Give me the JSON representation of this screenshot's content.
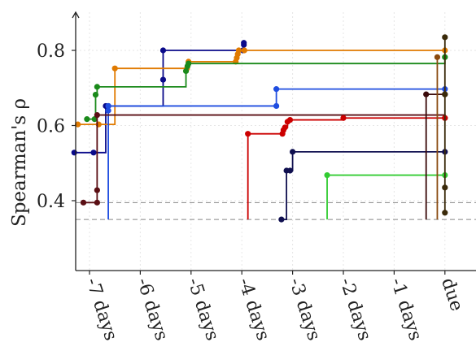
{
  "chart_data": {
    "type": "line",
    "step": true,
    "title": "",
    "xlabel": "",
    "ylabel": "Spearman's ρ",
    "x_ticks": [
      -7,
      -6,
      -5,
      -4,
      -3,
      -2,
      -1,
      0
    ],
    "x_tick_labels": [
      "-7 days",
      "-6 days",
      "-5 days",
      "-4 days",
      "-3 days",
      "-2 days",
      "-1 days",
      "due"
    ],
    "y_ticks": [
      0.4,
      0.6,
      0.8
    ],
    "y_tick_labels": [
      "0.4",
      "0.6",
      "0.8"
    ],
    "xlim": [
      -7.4,
      0.6
    ],
    "ylim": [
      0.22,
      0.91
    ],
    "grid": true,
    "reference_lines": [
      0.35,
      0.395
    ],
    "series": [
      {
        "color": "#0a0a8a",
        "x": [
          -7.3,
          -6.92,
          -6.68,
          -6.63,
          -5.55,
          -5.55,
          -3.98,
          -3.96,
          -3.96
        ],
        "y": [
          0.528,
          0.528,
          0.652,
          0.652,
          0.722,
          0.8,
          0.8,
          0.815,
          0.82
        ]
      },
      {
        "color": "#e07a00",
        "x": [
          -7.23,
          -6.82,
          -6.5,
          -5.08,
          -5.05,
          -4.12,
          -4.1,
          -4.08,
          -4.06,
          -3.95,
          0.0
        ],
        "y": [
          0.603,
          0.603,
          0.752,
          0.752,
          0.77,
          0.77,
          0.78,
          0.79,
          0.8,
          0.8,
          0.8
        ]
      },
      {
        "color": "#1a8a1a",
        "x": [
          -7.05,
          -6.9,
          -6.88,
          -6.85,
          -5.1,
          -5.07,
          -5.05,
          0.0
        ],
        "y": [
          0.617,
          0.617,
          0.682,
          0.703,
          0.745,
          0.758,
          0.765,
          0.782
        ]
      },
      {
        "color": "#1f4de0",
        "x": [
          -6.63,
          -6.63,
          -6.63,
          -3.32,
          -3.32,
          0.0
        ],
        "y": [
          0.35,
          0.64,
          0.652,
          0.652,
          0.697,
          0.697
        ]
      },
      {
        "color": "#5a0f14",
        "x": [
          -7.12,
          -6.85,
          -6.85,
          -6.85,
          0.0
        ],
        "y": [
          0.395,
          0.395,
          0.428,
          0.628,
          0.62
        ]
      },
      {
        "color": "#cc0000",
        "x": [
          -3.88,
          -3.88,
          -3.2,
          -3.18,
          -3.15,
          -3.1,
          -3.05,
          -2.0,
          0.0
        ],
        "y": [
          0.35,
          0.578,
          0.578,
          0.588,
          0.595,
          0.61,
          0.615,
          0.62,
          0.62
        ]
      },
      {
        "color": "#101050",
        "x": [
          -3.22,
          -3.22,
          -3.12,
          -3.05,
          -3.0,
          0.0
        ],
        "y": [
          0.35,
          0.35,
          0.48,
          0.48,
          0.53,
          0.53
        ]
      },
      {
        "color": "#33cc33",
        "x": [
          -2.32,
          -2.32,
          0.0
        ],
        "y": [
          0.35,
          0.468,
          0.468
        ]
      },
      {
        "color": "#3a0a0a",
        "x": [
          -0.37,
          -0.37,
          0.0
        ],
        "y": [
          0.35,
          0.683,
          0.683
        ]
      },
      {
        "color": "#8a4a10",
        "x": [
          -0.15,
          -0.15
        ],
        "y": [
          0.35,
          0.782
        ]
      },
      {
        "color": "#3a2a0a",
        "x": [
          0.0,
          0.0,
          0.0,
          0.0
        ],
        "y": [
          0.368,
          0.435,
          0.683,
          0.835
        ]
      }
    ]
  }
}
